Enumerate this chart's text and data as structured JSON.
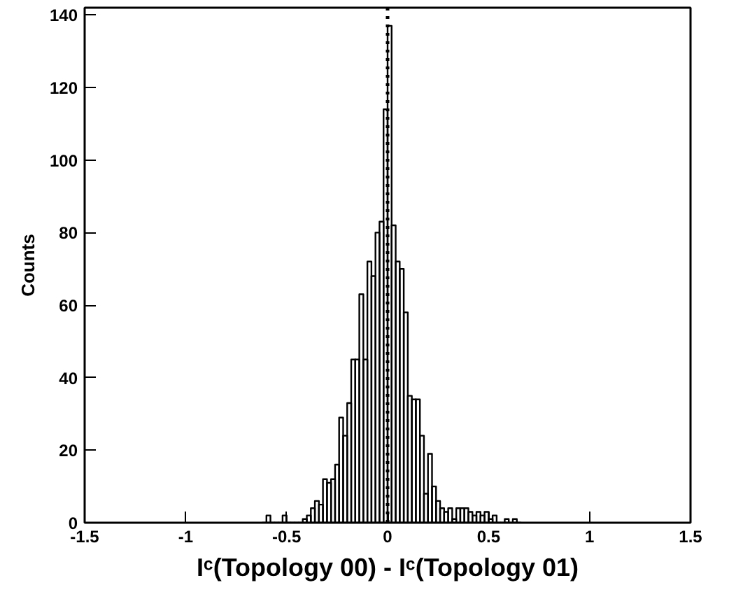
{
  "chart_data": {
    "type": "histogram",
    "xlabel": "Iᶜ(Topology 00) - Iᶜ(Topology 01)",
    "ylabel": "Counts",
    "bins": [
      -0.62,
      -0.6,
      -0.58,
      -0.56,
      -0.54,
      -0.52,
      -0.5,
      -0.48,
      -0.46,
      -0.44,
      -0.42,
      -0.4,
      -0.38,
      -0.36,
      -0.34,
      -0.32,
      -0.3,
      -0.28,
      -0.26,
      -0.24,
      -0.22,
      -0.2,
      -0.18,
      -0.16,
      -0.14,
      -0.12,
      -0.1,
      -0.08,
      -0.06,
      -0.04,
      -0.02,
      0,
      0.02,
      0.04,
      0.06,
      0.08,
      0.1,
      0.12,
      0.14,
      0.16,
      0.18,
      0.2,
      0.22,
      0.24,
      0.26,
      0.28,
      0.3,
      0.32,
      0.34,
      0.36,
      0.38,
      0.4,
      0.42,
      0.44,
      0.46,
      0.48,
      0.5,
      0.52,
      0.54,
      0.56,
      0.58,
      0.6,
      0.62,
      0.64,
      0.66
    ],
    "values": [
      0,
      2,
      0,
      0,
      0,
      2,
      0,
      0,
      0,
      0,
      1,
      2,
      4,
      6,
      5,
      12,
      11,
      12,
      16,
      29,
      24,
      33,
      45,
      45,
      63,
      45,
      72,
      68,
      80,
      83,
      114,
      137,
      82,
      72,
      70,
      58,
      35,
      34,
      34,
      24,
      8,
      19,
      10,
      6,
      4,
      3,
      4,
      1,
      4,
      4,
      4,
      3,
      2,
      3,
      2,
      3,
      1,
      2,
      0,
      0,
      1,
      0,
      1,
      0
    ],
    "color": "#000000",
    "xlim": [
      -1.5,
      1.5
    ],
    "xticks": [
      -1.5,
      -1,
      -0.5,
      0,
      0.5,
      1,
      1.5
    ],
    "ylim": [
      0,
      142
    ],
    "yticks": [
      0,
      20,
      40,
      60,
      80,
      100,
      120,
      140
    ],
    "ref_lines": [
      {
        "axis": "x",
        "value": 0,
        "label": null,
        "color": "#000000",
        "line_style": "dotted"
      }
    ],
    "grid": false
  }
}
